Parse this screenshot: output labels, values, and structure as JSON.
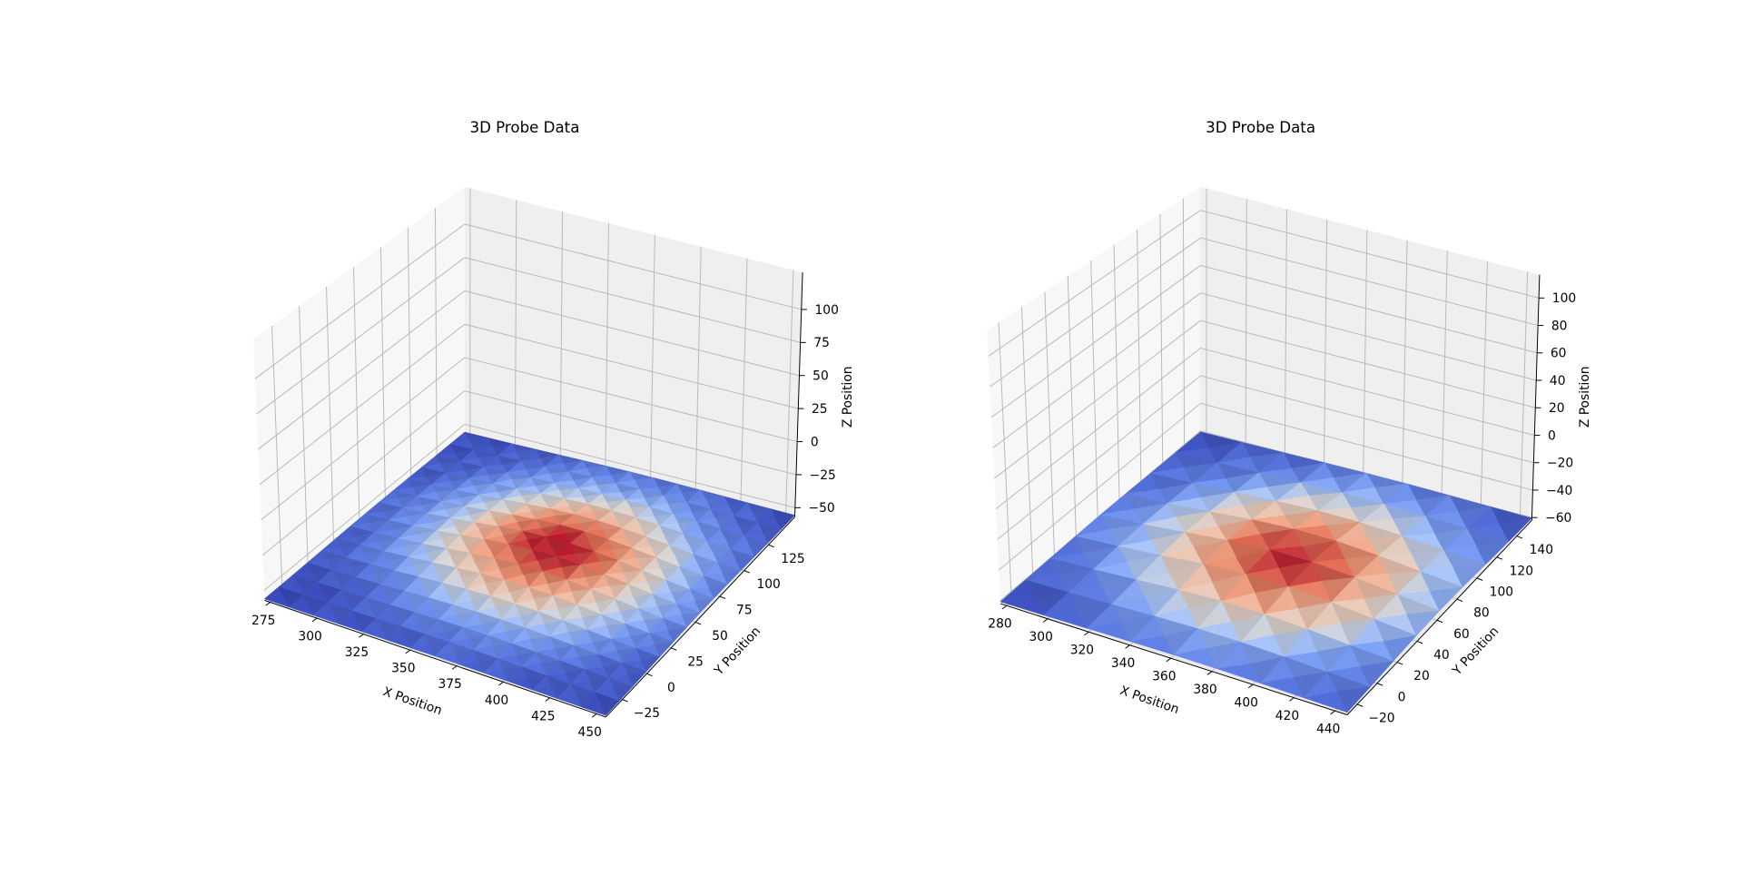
{
  "chart_data": [
    {
      "type": "surface3d",
      "title": "3D Probe Data",
      "xlabel": "X Position",
      "ylabel": "Y Position",
      "zlabel": "Z Position",
      "xlim": [
        272,
        455
      ],
      "ylim": [
        -42,
        152
      ],
      "zlim": [
        -57,
        128
      ],
      "xticks": [
        275,
        300,
        325,
        350,
        375,
        400,
        425,
        450
      ],
      "yticks": [
        -25,
        0,
        25,
        50,
        75,
        100,
        125
      ],
      "zticks": [
        -50,
        -25,
        0,
        25,
        50,
        75,
        100
      ],
      "colormap": "coolwarm",
      "grid": true,
      "surface": {
        "x_range": [
          272,
          455
        ],
        "y_range": [
          -42,
          152
        ],
        "nx": 15,
        "ny": 15,
        "center": [
          372,
          63
        ],
        "sigma": 45,
        "base_z": -56,
        "peak_z": -44
      }
    },
    {
      "type": "surface3d",
      "title": "3D Probe Data",
      "xlabel": "X Position",
      "ylabel": "Y Position",
      "zlabel": "Z Position",
      "xlim": [
        277,
        446
      ],
      "ylim": [
        -30,
        155
      ],
      "zlim": [
        -62,
        117
      ],
      "xticks": [
        280,
        300,
        320,
        340,
        360,
        380,
        400,
        420,
        440
      ],
      "yticks": [
        -20,
        0,
        20,
        40,
        60,
        80,
        100,
        120,
        140
      ],
      "zticks": [
        -60,
        -40,
        -20,
        0,
        20,
        40,
        60,
        80,
        100
      ],
      "colormap": "coolwarm",
      "grid": true,
      "surface": {
        "x_range": [
          277,
          446
        ],
        "y_range": [
          -30,
          155
        ],
        "nx": 9,
        "ny": 9,
        "center": [
          372,
          62
        ],
        "sigma": 48,
        "base_z": -61,
        "peak_z": -49
      }
    }
  ]
}
